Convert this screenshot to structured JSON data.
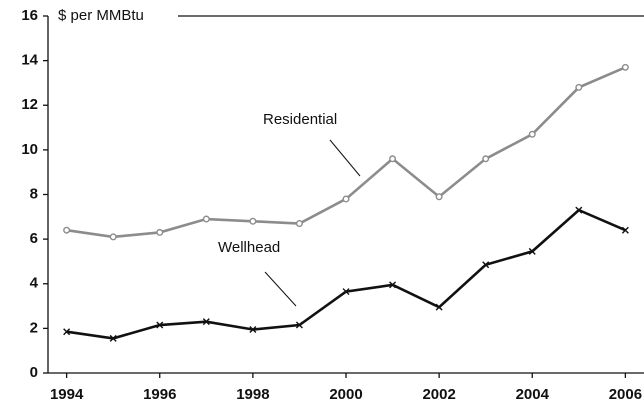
{
  "chart_data": {
    "type": "line",
    "y_label": "$ per MMBtu",
    "x": [
      1994,
      1995,
      1996,
      1997,
      1998,
      1999,
      2000,
      2001,
      2002,
      2003,
      2004,
      2005,
      2006
    ],
    "series": [
      {
        "name": "Residential",
        "color": "#8c8c8c",
        "marker": "circle",
        "values": [
          6.4,
          6.1,
          6.3,
          6.9,
          6.8,
          6.7,
          7.8,
          9.6,
          7.9,
          9.6,
          10.7,
          12.8,
          13.7
        ]
      },
      {
        "name": "Wellhead",
        "color": "#111111",
        "marker": "x",
        "values": [
          1.85,
          1.55,
          2.15,
          2.3,
          1.95,
          2.15,
          3.65,
          3.95,
          2.95,
          4.85,
          5.45,
          7.3,
          6.4
        ]
      }
    ],
    "xlim": [
      1993.6,
      2006.4
    ],
    "ylim": [
      0,
      16
    ],
    "xticks": [
      1994,
      1996,
      1998,
      2000,
      2002,
      2004,
      2006
    ],
    "yticks": [
      0,
      2,
      4,
      6,
      8,
      10,
      12,
      14,
      16
    ],
    "grid": false
  }
}
